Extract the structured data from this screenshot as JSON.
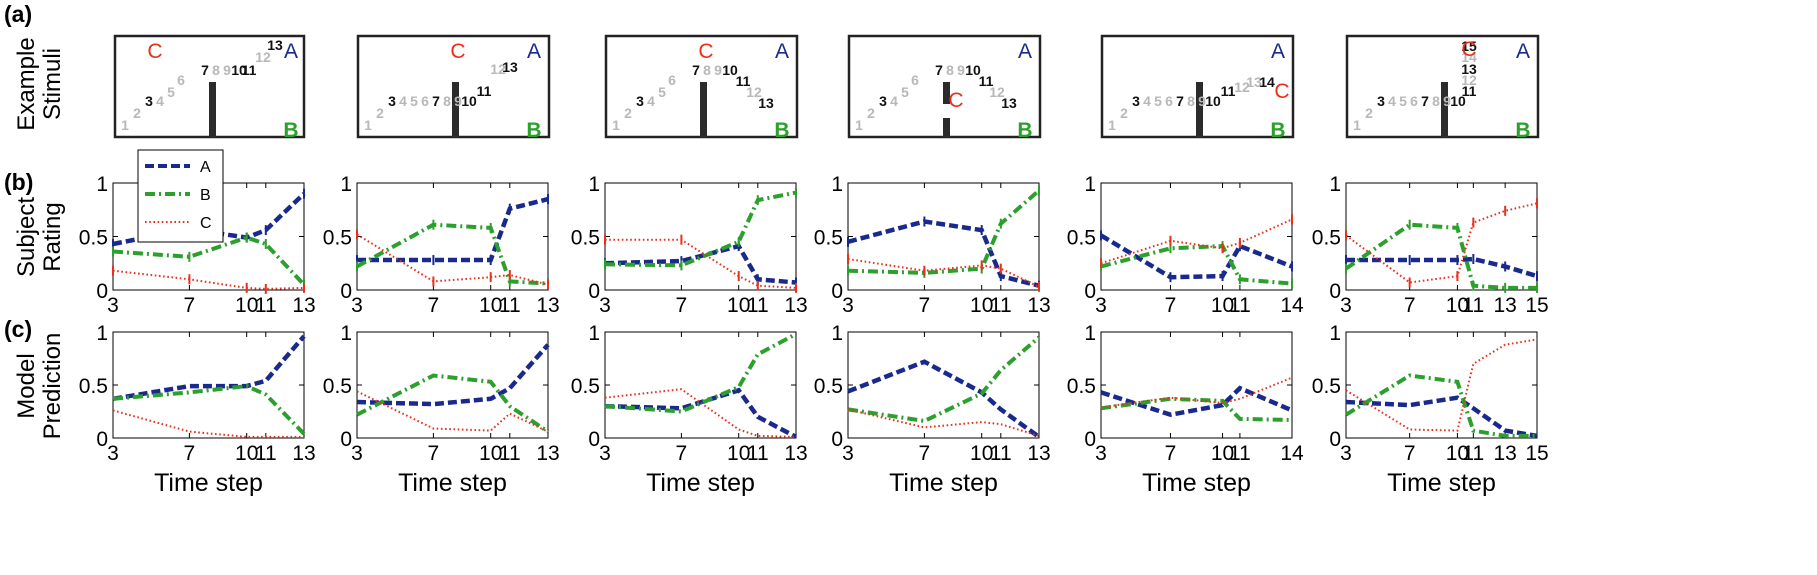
{
  "rows": {
    "a": {
      "letter": "(a)",
      "ylabel_lines": [
        "Example",
        "Stimuli"
      ]
    },
    "b": {
      "letter": "(b)",
      "ylabel_lines": [
        "Subject",
        "Rating"
      ]
    },
    "c": {
      "letter": "(c)",
      "ylabel_lines": [
        "Model",
        "Prediction"
      ]
    }
  },
  "xlabel": "Time step",
  "legend": {
    "entries": [
      {
        "name": "A",
        "color": "#1a2a8c",
        "dash": "dashed"
      },
      {
        "name": "B",
        "color": "#2ca02c",
        "dash": "dashdot"
      },
      {
        "name": "C",
        "color": "#e8301c",
        "dash": "dotted"
      }
    ]
  },
  "stimuli": [
    {
      "labels": {
        "A": "A",
        "B": "B",
        "C": "C"
      },
      "numbers": [
        "1",
        "2",
        "3",
        "4",
        "5",
        "6",
        "7",
        "8",
        "9",
        "10",
        "11",
        "12",
        "13"
      ],
      "highlight": [
        "3",
        "7",
        "10",
        "11",
        "13"
      ]
    },
    {
      "labels": {
        "A": "A",
        "B": "B",
        "C": "C"
      },
      "numbers": [
        "1",
        "2",
        "3",
        "4",
        "5",
        "6",
        "7",
        "8",
        "9",
        "10",
        "11",
        "12",
        "13"
      ],
      "highlight": [
        "3",
        "7",
        "10",
        "11",
        "13"
      ]
    },
    {
      "labels": {
        "A": "A",
        "B": "B",
        "C": "C"
      },
      "numbers": [
        "1",
        "2",
        "3",
        "4",
        "5",
        "6",
        "7",
        "8",
        "9",
        "10",
        "11",
        "12",
        "13"
      ],
      "highlight": [
        "3",
        "7",
        "10",
        "11",
        "13"
      ]
    },
    {
      "labels": {
        "A": "A",
        "B": "B",
        "C": "C"
      },
      "numbers": [
        "1",
        "2",
        "3",
        "4",
        "5",
        "6",
        "7",
        "8",
        "9",
        "10",
        "11",
        "12",
        "13"
      ],
      "highlight": [
        "3",
        "7",
        "10",
        "11",
        "13"
      ]
    },
    {
      "labels": {
        "A": "A",
        "B": "B",
        "C": "C"
      },
      "numbers": [
        "1",
        "2",
        "3",
        "4",
        "5",
        "6",
        "7",
        "8",
        "9",
        "10",
        "11",
        "12",
        "13",
        "14"
      ],
      "highlight": [
        "3",
        "7",
        "10",
        "11",
        "14"
      ]
    },
    {
      "labels": {
        "A": "A",
        "B": "B",
        "C": "C"
      },
      "numbers": [
        "1",
        "2",
        "3",
        "4",
        "5",
        "6",
        "7",
        "8",
        "9",
        "10",
        "11",
        "12",
        "13",
        "14",
        "15"
      ],
      "highlight": [
        "3",
        "7",
        "10",
        "11",
        "13",
        "15"
      ]
    }
  ],
  "chart_data": [
    {
      "type": "line",
      "panel": "b1",
      "x": [
        3,
        7,
        10,
        11,
        13
      ],
      "xticks": [
        "3",
        "7",
        "10",
        "11",
        "13"
      ],
      "yticks": [
        "0",
        "0.5",
        "1"
      ],
      "ylim": [
        0,
        1
      ],
      "series": [
        {
          "name": "A",
          "values": [
            0.43,
            0.57,
            0.49,
            0.56,
            0.9
          ]
        },
        {
          "name": "B",
          "values": [
            0.36,
            0.31,
            0.49,
            0.43,
            0.05
          ]
        },
        {
          "name": "C",
          "values": [
            0.18,
            0.1,
            0.02,
            0.01,
            0.02
          ]
        }
      ]
    },
    {
      "type": "line",
      "panel": "b2",
      "x": [
        3,
        7,
        10,
        11,
        13
      ],
      "xticks": [
        "3",
        "7",
        "10",
        "11",
        "13"
      ],
      "yticks": [
        "0",
        "0.5",
        "1"
      ],
      "ylim": [
        0,
        1
      ],
      "series": [
        {
          "name": "A",
          "values": [
            0.28,
            0.28,
            0.28,
            0.76,
            0.85
          ]
        },
        {
          "name": "B",
          "values": [
            0.22,
            0.61,
            0.58,
            0.08,
            0.06
          ]
        },
        {
          "name": "C",
          "values": [
            0.52,
            0.08,
            0.12,
            0.14,
            0.05
          ]
        }
      ]
    },
    {
      "type": "line",
      "panel": "b3",
      "x": [
        3,
        7,
        10,
        11,
        13
      ],
      "xticks": [
        "3",
        "7",
        "10",
        "11",
        "13"
      ],
      "yticks": [
        "0",
        "0.5",
        "1"
      ],
      "ylim": [
        0,
        1
      ],
      "series": [
        {
          "name": "A",
          "values": [
            0.25,
            0.27,
            0.41,
            0.1,
            0.07
          ]
        },
        {
          "name": "B",
          "values": [
            0.24,
            0.23,
            0.45,
            0.84,
            0.91
          ]
        },
        {
          "name": "C",
          "values": [
            0.47,
            0.47,
            0.13,
            0.04,
            0.02
          ]
        }
      ]
    },
    {
      "type": "line",
      "panel": "b4",
      "x": [
        3,
        7,
        10,
        11,
        13
      ],
      "xticks": [
        "3",
        "7",
        "10",
        "11",
        "13"
      ],
      "yticks": [
        "0",
        "0.5",
        "1"
      ],
      "ylim": [
        0,
        1
      ],
      "series": [
        {
          "name": "A",
          "values": [
            0.45,
            0.64,
            0.56,
            0.13,
            0.04
          ]
        },
        {
          "name": "B",
          "values": [
            0.18,
            0.16,
            0.2,
            0.62,
            0.93
          ]
        },
        {
          "name": "C",
          "values": [
            0.29,
            0.18,
            0.23,
            0.2,
            0.03
          ]
        }
      ]
    },
    {
      "type": "line",
      "panel": "b5",
      "x": [
        3,
        7,
        10,
        11,
        14
      ],
      "xticks": [
        "3",
        "7",
        "10",
        "11",
        "14"
      ],
      "yticks": [
        "0",
        "0.5",
        "1"
      ],
      "ylim": [
        0,
        1
      ],
      "series": [
        {
          "name": "A",
          "values": [
            0.51,
            0.12,
            0.13,
            0.41,
            0.22
          ]
        },
        {
          "name": "B",
          "values": [
            0.22,
            0.39,
            0.41,
            0.1,
            0.06
          ]
        },
        {
          "name": "C",
          "values": [
            0.25,
            0.46,
            0.39,
            0.44,
            0.66
          ]
        }
      ]
    },
    {
      "type": "line",
      "panel": "b6",
      "x": [
        3,
        7,
        10,
        11,
        13,
        15
      ],
      "xticks": [
        "3",
        "7",
        "10",
        "11",
        "13",
        "15"
      ],
      "yticks": [
        "0",
        "0.5",
        "1"
      ],
      "ylim": [
        0,
        1
      ],
      "series": [
        {
          "name": "A",
          "values": [
            0.28,
            0.28,
            0.28,
            0.29,
            0.22,
            0.13
          ]
        },
        {
          "name": "B",
          "values": [
            0.2,
            0.61,
            0.58,
            0.04,
            0.02,
            0.02
          ]
        },
        {
          "name": "C",
          "values": [
            0.51,
            0.07,
            0.13,
            0.63,
            0.74,
            0.81
          ]
        }
      ]
    },
    {
      "type": "line",
      "panel": "c1",
      "x": [
        3,
        7,
        10,
        11,
        13
      ],
      "xticks": [
        "3",
        "7",
        "10",
        "11",
        "13"
      ],
      "yticks": [
        "0",
        "0.5",
        "1"
      ],
      "ylim": [
        0,
        1
      ],
      "series": [
        {
          "name": "A",
          "values": [
            0.37,
            0.49,
            0.49,
            0.54,
            0.96
          ]
        },
        {
          "name": "B",
          "values": [
            0.37,
            0.43,
            0.49,
            0.41,
            0.04
          ]
        },
        {
          "name": "C",
          "values": [
            0.26,
            0.06,
            0.01,
            0.01,
            0.01
          ]
        }
      ]
    },
    {
      "type": "line",
      "panel": "c2",
      "x": [
        3,
        7,
        10,
        11,
        13
      ],
      "xticks": [
        "3",
        "7",
        "10",
        "11",
        "13"
      ],
      "yticks": [
        "0",
        "0.5",
        "1"
      ],
      "ylim": [
        0,
        1
      ],
      "series": [
        {
          "name": "A",
          "values": [
            0.34,
            0.32,
            0.37,
            0.47,
            0.88
          ]
        },
        {
          "name": "B",
          "values": [
            0.22,
            0.59,
            0.53,
            0.3,
            0.06
          ]
        },
        {
          "name": "C",
          "values": [
            0.44,
            0.09,
            0.07,
            0.23,
            0.06
          ]
        }
      ]
    },
    {
      "type": "line",
      "panel": "c3",
      "x": [
        3,
        7,
        10,
        11,
        13
      ],
      "xticks": [
        "3",
        "7",
        "10",
        "11",
        "13"
      ],
      "yticks": [
        "0",
        "0.5",
        "1"
      ],
      "ylim": [
        0,
        1
      ],
      "series": [
        {
          "name": "A",
          "values": [
            0.3,
            0.28,
            0.45,
            0.2,
            0.01
          ]
        },
        {
          "name": "B",
          "values": [
            0.3,
            0.25,
            0.48,
            0.79,
            0.98
          ]
        },
        {
          "name": "C",
          "values": [
            0.38,
            0.46,
            0.08,
            0.02,
            0.01
          ]
        }
      ]
    },
    {
      "type": "line",
      "panel": "c4",
      "x": [
        3,
        7,
        10,
        11,
        13
      ],
      "xticks": [
        "3",
        "7",
        "10",
        "11",
        "13"
      ],
      "yticks": [
        "0",
        "0.5",
        "1"
      ],
      "ylim": [
        0,
        1
      ],
      "series": [
        {
          "name": "A",
          "values": [
            0.44,
            0.72,
            0.43,
            0.27,
            0.01
          ]
        },
        {
          "name": "B",
          "values": [
            0.27,
            0.16,
            0.42,
            0.64,
            0.95
          ]
        },
        {
          "name": "C",
          "values": [
            0.27,
            0.1,
            0.15,
            0.13,
            0.02
          ]
        }
      ]
    },
    {
      "type": "line",
      "panel": "c5",
      "x": [
        3,
        7,
        10,
        11,
        14
      ],
      "xticks": [
        "3",
        "7",
        "10",
        "11",
        "14"
      ],
      "yticks": [
        "0",
        "0.5",
        "1"
      ],
      "ylim": [
        0,
        1
      ],
      "series": [
        {
          "name": "A",
          "values": [
            0.43,
            0.22,
            0.31,
            0.47,
            0.26
          ]
        },
        {
          "name": "B",
          "values": [
            0.28,
            0.37,
            0.35,
            0.18,
            0.17
          ]
        },
        {
          "name": "C",
          "values": [
            0.29,
            0.38,
            0.33,
            0.37,
            0.57
          ]
        }
      ]
    },
    {
      "type": "line",
      "panel": "c6",
      "x": [
        3,
        7,
        10,
        11,
        13,
        15
      ],
      "xticks": [
        "3",
        "7",
        "10",
        "11",
        "13",
        "15"
      ],
      "yticks": [
        "0",
        "0.5",
        "1"
      ],
      "ylim": [
        0,
        1
      ],
      "series": [
        {
          "name": "A",
          "values": [
            0.34,
            0.31,
            0.38,
            0.28,
            0.07,
            0.02
          ]
        },
        {
          "name": "B",
          "values": [
            0.22,
            0.59,
            0.53,
            0.07,
            0.02,
            0.02
          ]
        },
        {
          "name": "C",
          "values": [
            0.45,
            0.08,
            0.07,
            0.7,
            0.88,
            0.93
          ]
        }
      ]
    }
  ]
}
